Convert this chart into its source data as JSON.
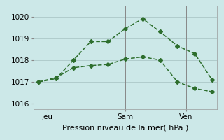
{
  "line1_x": [
    0,
    1,
    2,
    3,
    4,
    5,
    6,
    7,
    8,
    9,
    10
  ],
  "line1_y": [
    1017.0,
    1017.15,
    1018.0,
    1018.85,
    1018.85,
    1019.45,
    1019.9,
    1019.3,
    1018.65,
    1018.3,
    1017.1
  ],
  "line2_x": [
    0,
    1,
    2,
    3,
    4,
    5,
    6,
    7,
    8,
    9,
    10
  ],
  "line2_y": [
    1017.0,
    1017.2,
    1017.65,
    1017.75,
    1017.8,
    1018.05,
    1018.15,
    1018.0,
    1017.0,
    1016.7,
    1016.55
  ],
  "line_color": "#2d6e2d",
  "bg_color": "#cce8e8",
  "grid_color": "#b0cccc",
  "xlabel": "Pression niveau de la mer( hPa )",
  "ylim": [
    1015.75,
    1020.5
  ],
  "yticks": [
    1016,
    1017,
    1018,
    1019,
    1020
  ],
  "xlim": [
    -0.3,
    10.3
  ],
  "xtick_positions": [
    0.5,
    5.0,
    8.5
  ],
  "xtick_labels": [
    "Jeu",
    "Sam",
    "Ven"
  ],
  "vline_positions": [
    5.0,
    8.5
  ],
  "marker": "D",
  "markersize": 3,
  "linewidth": 1.1,
  "tick_fontsize": 7.5,
  "xlabel_fontsize": 8
}
